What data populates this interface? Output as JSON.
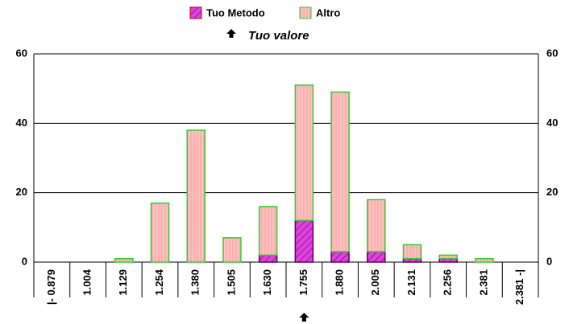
{
  "chart_data": {
    "type": "bar",
    "stacked": true,
    "categories": [
      "|- 0.879",
      "1.004",
      "1.129",
      "1.254",
      "1.380",
      "1.505",
      "1.630",
      "1.755",
      "1.880",
      "2.005",
      "2.131",
      "2.256",
      "2.381",
      "2.381 -|"
    ],
    "series": [
      {
        "name": "Tuo Metodo",
        "color": "#e040e0",
        "values": [
          0,
          0,
          0,
          0,
          0,
          0,
          2,
          12,
          3,
          3,
          1,
          1,
          0,
          0
        ]
      },
      {
        "name": "Altro",
        "color": "#ffc0c0",
        "values": [
          0,
          0,
          1,
          17,
          38,
          7,
          14,
          39,
          46,
          15,
          4,
          1,
          1,
          0
        ]
      }
    ],
    "annotation": {
      "text": "Tuo valore",
      "category": "1.755"
    },
    "ylim": [
      0,
      60
    ],
    "yticks": [
      0,
      20,
      40,
      60
    ],
    "grid": true
  }
}
